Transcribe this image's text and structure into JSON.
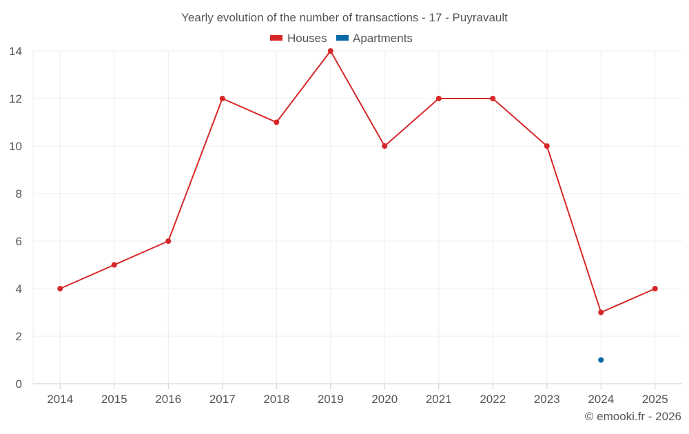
{
  "chart_data": {
    "type": "line",
    "title": "Yearly evolution of the number of transactions - 17 - Puyravault",
    "xlabel": "",
    "ylabel": "",
    "categories": [
      "2014",
      "2015",
      "2016",
      "2017",
      "2018",
      "2019",
      "2020",
      "2021",
      "2022",
      "2023",
      "2024",
      "2025"
    ],
    "ylim": [
      0,
      14
    ],
    "yticks": [
      0,
      2,
      4,
      6,
      8,
      10,
      12,
      14
    ],
    "grid": true,
    "legend_position": "top-center",
    "series": [
      {
        "name": "Houses",
        "color": "#d62728",
        "values": [
          4,
          5,
          6,
          12,
          11,
          14,
          10,
          12,
          12,
          10,
          3,
          4
        ]
      },
      {
        "name": "Apartments",
        "color": "#0868a8",
        "values": [
          null,
          null,
          null,
          null,
          null,
          null,
          null,
          null,
          null,
          null,
          1,
          null
        ]
      }
    ]
  },
  "credit": "© emooki.fr - 2026",
  "colors": {
    "text": "#555555",
    "grid": "#eeeeee",
    "axis": "#cccccc"
  }
}
